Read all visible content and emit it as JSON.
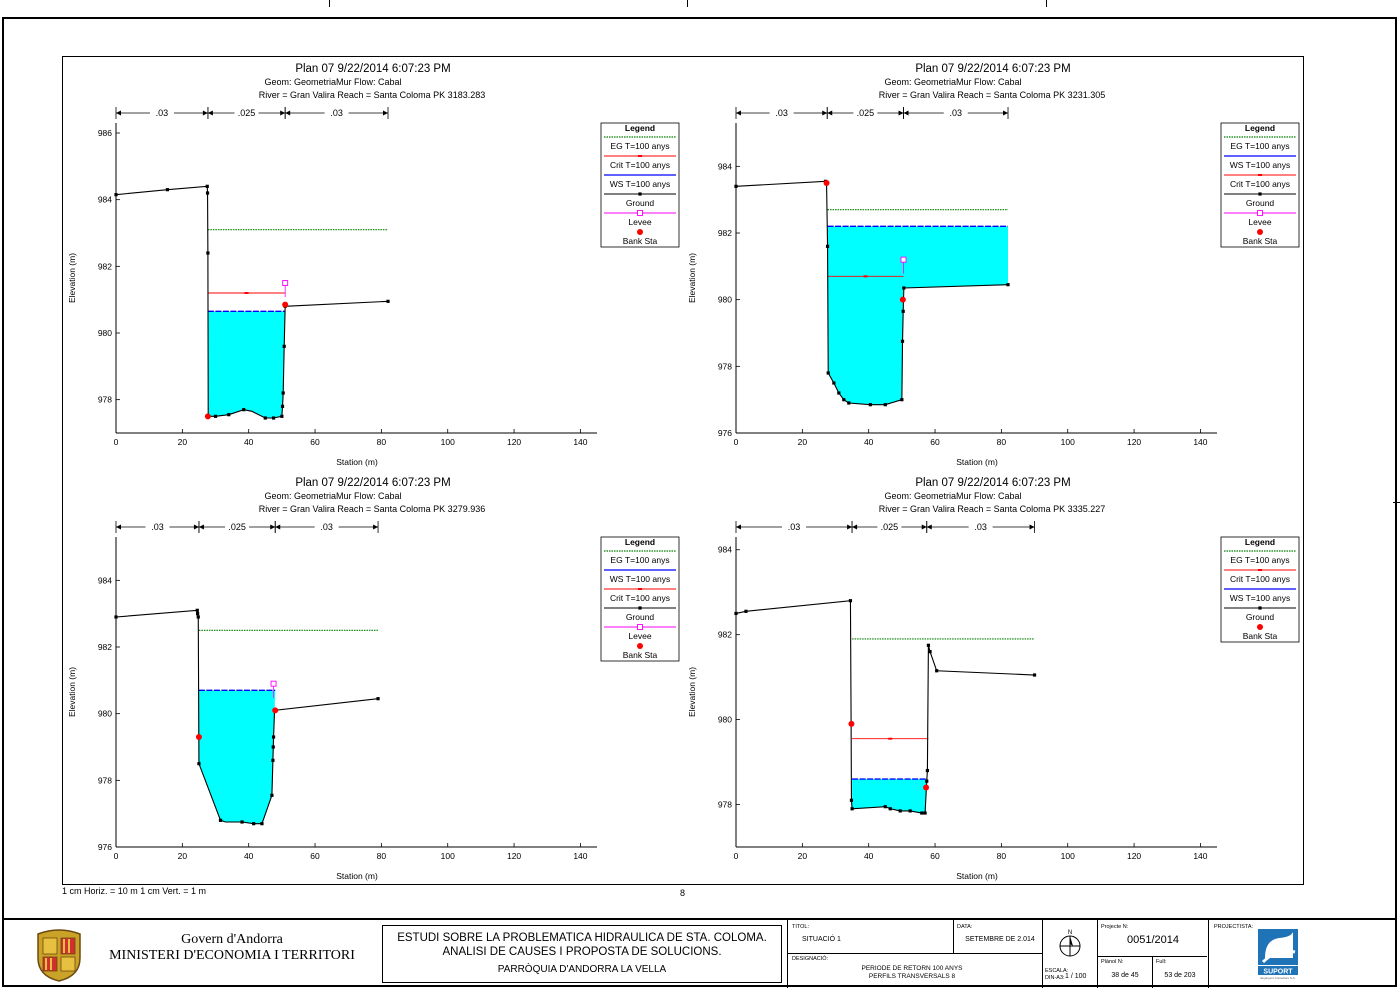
{
  "chart_data": [
    {
      "type": "line",
      "id": "p1",
      "title": "Plan 07    9/22/2014  6:07:23 PM",
      "subtitle1": "Geom: GeometriaMur    Flow: Cabal",
      "subtitle2": "River = Gran Valira   Reach = Santa Coloma        PK 3183.283",
      "xlabel": "Station (m)",
      "ylabel": "Elevation (m)",
      "xlim": [
        0,
        145
      ],
      "ylim": [
        977,
        986.3
      ],
      "xticks": [
        0,
        20,
        40,
        60,
        80,
        100,
        120,
        140
      ],
      "yticks": [
        978,
        980,
        982,
        984,
        986
      ],
      "manning": [
        {
          "from": 0,
          "to": 27.7,
          "n": ".03"
        },
        {
          "from": 27.7,
          "to": 51,
          "n": ".025"
        },
        {
          "from": 51,
          "to": 82,
          "n": ".03"
        }
      ],
      "ground": [
        [
          0,
          984.15
        ],
        [
          15.5,
          984.3
        ],
        [
          27.5,
          984.4
        ],
        [
          27.6,
          984.2
        ],
        [
          27.7,
          982.4
        ],
        [
          27.8,
          977.5
        ],
        [
          30,
          977.5
        ],
        [
          34,
          977.55
        ],
        [
          38.5,
          977.7
        ],
        [
          41,
          977.65
        ],
        [
          45,
          977.45
        ],
        [
          47.5,
          977.45
        ],
        [
          50,
          977.5
        ],
        [
          50.2,
          977.8
        ],
        [
          50.4,
          978.2
        ],
        [
          50.7,
          979.6
        ],
        [
          51,
          980.8
        ],
        [
          82,
          980.95
        ]
      ],
      "ground_points": [
        [
          0,
          984.15
        ],
        [
          15.5,
          984.3
        ],
        [
          27.5,
          984.4
        ],
        [
          27.6,
          984.2
        ],
        [
          27.7,
          982.4
        ],
        [
          30,
          977.5
        ],
        [
          34,
          977.55
        ],
        [
          38.5,
          977.7
        ],
        [
          45,
          977.45
        ],
        [
          47.5,
          977.45
        ],
        [
          50,
          977.5
        ],
        [
          50.2,
          977.8
        ],
        [
          50.4,
          978.2
        ],
        [
          50.7,
          979.6
        ],
        [
          51,
          980.8
        ],
        [
          82,
          980.95
        ]
      ],
      "bank_sta": [
        [
          27.7,
          977.5
        ],
        [
          51,
          980.85
        ]
      ],
      "levee": [
        [
          51,
          981.5
        ]
      ],
      "ws": {
        "elevation": 980.65,
        "x_from": 27.7,
        "x_to": 51,
        "fill": [
          [
            27.7,
            980.65
          ],
          [
            51,
            980.65
          ],
          [
            51,
            980.8
          ],
          [
            50.7,
            979.6
          ],
          [
            50.4,
            978.2
          ],
          [
            50.2,
            977.8
          ],
          [
            50,
            977.5
          ],
          [
            47.5,
            977.45
          ],
          [
            45,
            977.45
          ],
          [
            41,
            977.65
          ],
          [
            38.5,
            977.7
          ],
          [
            34,
            977.55
          ],
          [
            30,
            977.5
          ],
          [
            27.8,
            977.5
          ]
        ]
      },
      "eg": {
        "elevation": 983.1,
        "x_from": 27.7,
        "x_to": 82
      },
      "crit": {
        "elevation": 981.2,
        "x_from": 27.7,
        "x_to": 51
      },
      "legend": [
        "Legend",
        "EG T=100 anys",
        "Crit T=100 anys",
        "WS T=100 anys",
        "Ground",
        "Levee",
        "Bank Sta"
      ],
      "legend_types": [
        "header",
        "eg",
        "crit",
        "ws",
        "ground",
        "levee",
        "bank"
      ]
    },
    {
      "type": "line",
      "id": "p2",
      "title": "Plan 07    9/22/2014  6:07:23 PM",
      "subtitle1": "Geom: GeometriaMur    Flow: Cabal",
      "subtitle2": "River = Gran Valira   Reach = Santa Coloma        PK 3231.305",
      "xlabel": "Station (m)",
      "ylabel": "Elevation (m)",
      "xlim": [
        0,
        145
      ],
      "ylim": [
        976,
        985.3
      ],
      "xticks": [
        0,
        20,
        40,
        60,
        80,
        100,
        120,
        140
      ],
      "yticks": [
        976,
        978,
        980,
        982,
        984
      ],
      "manning": [
        {
          "from": 0,
          "to": 27.5,
          "n": ".03"
        },
        {
          "from": 27.5,
          "to": 50.5,
          "n": ".025"
        },
        {
          "from": 50.5,
          "to": 82,
          "n": ".03"
        }
      ],
      "ground": [
        [
          0,
          983.4
        ],
        [
          27,
          983.55
        ],
        [
          27.3,
          983.5
        ],
        [
          27.6,
          981.6
        ],
        [
          27.8,
          977.8
        ],
        [
          29.5,
          977.5
        ],
        [
          31,
          977.2
        ],
        [
          32.5,
          977
        ],
        [
          34,
          976.9
        ],
        [
          40.5,
          976.85
        ],
        [
          45,
          976.85
        ],
        [
          50,
          977
        ],
        [
          50.2,
          978.75
        ],
        [
          50.4,
          979.65
        ],
        [
          50.6,
          980.35
        ],
        [
          82,
          980.45
        ]
      ],
      "ground_points": [
        [
          0,
          983.4
        ],
        [
          27,
          983.55
        ],
        [
          27.6,
          981.6
        ],
        [
          27.8,
          977.8
        ],
        [
          29.5,
          977.5
        ],
        [
          31,
          977.2
        ],
        [
          32.5,
          977
        ],
        [
          34,
          976.9
        ],
        [
          40.5,
          976.85
        ],
        [
          45,
          976.85
        ],
        [
          50,
          977
        ],
        [
          50.2,
          978.75
        ],
        [
          50.4,
          979.65
        ],
        [
          50.6,
          980.35
        ],
        [
          82,
          980.45
        ]
      ],
      "bank_sta": [
        [
          27.3,
          983.5
        ],
        [
          50.3,
          980
        ]
      ],
      "levee": [
        [
          50.5,
          981.2
        ]
      ],
      "ws": {
        "elevation": 982.2,
        "x_from": 27.6,
        "x_to": 82,
        "fill": [
          [
            27.6,
            982.2
          ],
          [
            82,
            982.2
          ],
          [
            82,
            980.45
          ],
          [
            50.6,
            980.35
          ],
          [
            50.4,
            979.65
          ],
          [
            50.2,
            978.75
          ],
          [
            50,
            977
          ],
          [
            45,
            976.85
          ],
          [
            40.5,
            976.85
          ],
          [
            34,
            976.9
          ],
          [
            32.5,
            977
          ],
          [
            31,
            977.2
          ],
          [
            29.5,
            977.5
          ],
          [
            27.8,
            977.8
          ]
        ]
      },
      "eg": {
        "elevation": 982.7,
        "x_from": 27.6,
        "x_to": 82
      },
      "crit": {
        "elevation": 980.7,
        "x_from": 27.6,
        "x_to": 50.5
      },
      "legend": [
        "Legend",
        "EG T=100 anys",
        "WS T=100 anys",
        "Crit T=100 anys",
        "Ground",
        "Levee",
        "Bank Sta"
      ],
      "legend_types": [
        "header",
        "eg",
        "ws",
        "crit",
        "ground",
        "levee",
        "bank"
      ]
    },
    {
      "type": "line",
      "id": "p3",
      "title": "Plan 07    9/22/2014  6:07:23 PM",
      "subtitle1": "Geom: GeometriaMur    Flow: Cabal",
      "subtitle2": "River = Gran Valira   Reach = Santa Coloma        PK 3279.936",
      "xlabel": "Station (m)",
      "ylabel": "Elevation (m)",
      "xlim": [
        0,
        145
      ],
      "ylim": [
        976,
        985.3
      ],
      "xticks": [
        0,
        20,
        40,
        60,
        80,
        100,
        120,
        140
      ],
      "yticks": [
        976,
        978,
        980,
        982,
        984
      ],
      "manning": [
        {
          "from": 0,
          "to": 25,
          "n": ".03"
        },
        {
          "from": 25,
          "to": 48,
          "n": ".025"
        },
        {
          "from": 48,
          "to": 79,
          "n": ".03"
        }
      ],
      "ground": [
        [
          0,
          982.9
        ],
        [
          24.5,
          983.1
        ],
        [
          24.6,
          983
        ],
        [
          24.8,
          982.9
        ],
        [
          25,
          978.5
        ],
        [
          31.5,
          976.8
        ],
        [
          33,
          976.75
        ],
        [
          38,
          976.75
        ],
        [
          41.5,
          976.7
        ],
        [
          44,
          976.7
        ],
        [
          47,
          977.55
        ],
        [
          47.3,
          978.6
        ],
        [
          47.5,
          979.3
        ],
        [
          47.8,
          980.1
        ],
        [
          79,
          980.45
        ]
      ],
      "ground_points": [
        [
          0,
          982.9
        ],
        [
          24.5,
          983.1
        ],
        [
          24.6,
          983
        ],
        [
          24.8,
          982.9
        ],
        [
          25,
          978.5
        ],
        [
          31.5,
          976.8
        ],
        [
          38,
          976.75
        ],
        [
          41.5,
          976.7
        ],
        [
          44,
          976.7
        ],
        [
          47,
          977.55
        ],
        [
          47.3,
          978.6
        ],
        [
          47.4,
          979.0
        ],
        [
          47.5,
          979.3
        ],
        [
          47.8,
          980.1
        ],
        [
          79,
          980.45
        ]
      ],
      "bank_sta": [
        [
          25,
          979.3
        ],
        [
          48,
          980.1
        ]
      ],
      "levee": [
        [
          47.5,
          980.9
        ]
      ],
      "ws": {
        "elevation": 980.7,
        "x_from": 25,
        "x_to": 48,
        "fill": [
          [
            25,
            980.7
          ],
          [
            48,
            980.7
          ],
          [
            47.8,
            980.1
          ],
          [
            47.5,
            979.3
          ],
          [
            47.3,
            978.6
          ],
          [
            47,
            977.55
          ],
          [
            44,
            976.7
          ],
          [
            41.5,
            976.7
          ],
          [
            38,
            976.75
          ],
          [
            33,
            976.75
          ],
          [
            31.5,
            976.8
          ],
          [
            25,
            978.5
          ]
        ]
      },
      "eg": {
        "elevation": 982.5,
        "x_from": 25,
        "x_to": 79
      },
      "crit": null,
      "legend": [
        "Legend",
        "EG T=100 anys",
        "WS T=100 anys",
        "Crit T=100 anys",
        "Ground",
        "Levee",
        "Bank Sta"
      ],
      "legend_types": [
        "header",
        "eg",
        "ws",
        "crit",
        "ground",
        "levee",
        "bank"
      ]
    },
    {
      "type": "line",
      "id": "p4",
      "title": "Plan 07    9/22/2014  6:07:23 PM",
      "subtitle1": "Geom: GeometriaMur    Flow: Cabal",
      "subtitle2": "River = Gran Valira   Reach = Santa Coloma        PK 3335.227",
      "xlabel": "Station (m)",
      "ylabel": "Elevation (m)",
      "xlim": [
        0,
        145
      ],
      "ylim": [
        977,
        984.3
      ],
      "xticks": [
        0,
        20,
        40,
        60,
        80,
        100,
        120,
        140
      ],
      "yticks": [
        978,
        980,
        982,
        984
      ],
      "manning": [
        {
          "from": 0,
          "to": 35,
          "n": ".03"
        },
        {
          "from": 35,
          "to": 57.5,
          "n": ".025"
        },
        {
          "from": 57.5,
          "to": 90,
          "n": ".03"
        }
      ],
      "ground": [
        [
          0,
          982.5
        ],
        [
          3,
          982.55
        ],
        [
          34.5,
          982.8
        ],
        [
          34.7,
          979.9
        ],
        [
          34.8,
          978.1
        ],
        [
          35,
          977.9
        ],
        [
          45,
          977.95
        ],
        [
          46.5,
          977.9
        ],
        [
          49.5,
          977.85
        ],
        [
          52.5,
          977.85
        ],
        [
          56,
          977.8
        ],
        [
          57,
          977.8
        ],
        [
          57.5,
          978.55
        ],
        [
          57.7,
          978.8
        ],
        [
          58,
          981.75
        ],
        [
          58.5,
          981.6
        ],
        [
          60.5,
          981.15
        ],
        [
          90,
          981.05
        ]
      ],
      "ground_points": [
        [
          0,
          982.5
        ],
        [
          3,
          982.55
        ],
        [
          34.5,
          982.8
        ],
        [
          34.8,
          978.1
        ],
        [
          35,
          977.9
        ],
        [
          45,
          977.95
        ],
        [
          46.5,
          977.9
        ],
        [
          49.5,
          977.85
        ],
        [
          52.5,
          977.85
        ],
        [
          56,
          977.8
        ],
        [
          57,
          977.8
        ],
        [
          57.5,
          978.55
        ],
        [
          57.7,
          978.8
        ],
        [
          58,
          981.75
        ],
        [
          58.5,
          981.6
        ],
        [
          60.5,
          981.15
        ],
        [
          90,
          981.05
        ]
      ],
      "bank_sta": [
        [
          34.8,
          979.9
        ],
        [
          57.3,
          978.4
        ]
      ],
      "levee": [],
      "ws": {
        "elevation": 978.6,
        "x_from": 35,
        "x_to": 57.7,
        "fill": [
          [
            35,
            978.6
          ],
          [
            57.6,
            978.6
          ],
          [
            57.5,
            978.55
          ],
          [
            57,
            977.8
          ],
          [
            56,
            977.8
          ],
          [
            52.5,
            977.85
          ],
          [
            49.5,
            977.85
          ],
          [
            46.5,
            977.9
          ],
          [
            45,
            977.95
          ],
          [
            35,
            977.9
          ]
        ]
      },
      "eg": {
        "elevation": 981.9,
        "x_from": 35,
        "x_to": 90
      },
      "crit": {
        "elevation": 979.55,
        "x_from": 35,
        "x_to": 58
      },
      "legend": [
        "Legend",
        "EG T=100 anys",
        "Crit T=100 anys",
        "WS T=100 anys",
        "Ground",
        "Bank Sta"
      ],
      "legend_types": [
        "header",
        "eg",
        "crit",
        "ws",
        "ground",
        "bank"
      ]
    }
  ],
  "colors": {
    "water": "#00ffff",
    "eg": "#008000",
    "ws": "#0000ff",
    "crit": "#ff0000",
    "ground": "#000000",
    "levee": "#ff00ff",
    "bank": "#ff0000"
  },
  "footer": {
    "scale_note": "1 cm Horiz. = 10 m    1 cm Vert. = 1 m",
    "page_number": "8"
  },
  "title_block": {
    "org_line1": "Govern d'Andorra",
    "org_line2": "MINISTERI D'ECONOMIA I TERRITORI",
    "study_line1": "ESTUDI SOBRE LA PROBLEMATICA HIDRAULICA DE STA. COLOMA.",
    "study_line2": "ANALISI DE CAUSES I PROPOSTA DE SOLUCIONS.",
    "study_line3": "PARRÒQUIA D'ANDORRA LA VELLA",
    "titol_label": "TITOL:",
    "titol_value": "SITUACIÓ 1",
    "data_label": "DATA:",
    "data_value": "SETEMBRE DE 2.014",
    "designacio_label": "DESIGNACIÓ:",
    "designacio_line1": "PERIODE DE RETORN 100 ANYS",
    "designacio_line2": "PERFILS TRANSVERSALS 8",
    "escala_label": "ESCALA:",
    "escala_sub": "DIN-A3:",
    "escala_value": "1 / 100",
    "projecte_label": "Projecte N:",
    "projecte_value": "0051/2014",
    "planol_label": "Plànol N:",
    "planol_value": "38 de 45",
    "full_label": "Full:",
    "full_value": "53 de 203",
    "projectista_label": "PROJECTISTA:",
    "logo_text": "SUPORT",
    "logo_sub": "Enginyers Consultors S.A.",
    "north_letter": "N"
  }
}
